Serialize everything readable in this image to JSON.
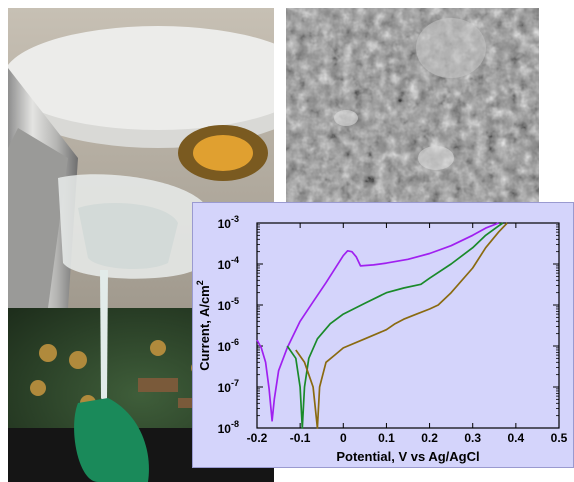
{
  "figure": {
    "left_photo": {
      "subject": "microscope objective above a pipette tip and circuit board"
    },
    "sem_image": {
      "subject": "scanning electron micrograph of a porous surface"
    }
  },
  "chart_data": {
    "type": "line",
    "title": "",
    "xlabel": "Potential, V vs Ag/AgCl",
    "ylabel_main": "Current, A/cm",
    "ylabel_superscript": "2",
    "x_scale": "linear",
    "y_scale": "log",
    "xlim": [
      -0.2,
      0.5
    ],
    "ylim": [
      1e-08,
      0.001
    ],
    "x_ticks": [
      -0.2,
      -0.1,
      0,
      0.1,
      0.2,
      0.3,
      0.4,
      0.5
    ],
    "x_tick_labels": [
      "-0.2",
      "-0.1",
      "0",
      "0.1",
      "0.2",
      "0.3",
      "0.4",
      "0.5"
    ],
    "y_ticks": [
      1e-08,
      1e-07,
      1e-06,
      1e-05,
      0.0001,
      0.001
    ],
    "y_tick_labels": [
      {
        "base": "10",
        "exp": "-8"
      },
      {
        "base": "10",
        "exp": "-7"
      },
      {
        "base": "10",
        "exp": "-6"
      },
      {
        "base": "10",
        "exp": "-5"
      },
      {
        "base": "10",
        "exp": "-4"
      },
      {
        "base": "10",
        "exp": "-3"
      }
    ],
    "grid": false,
    "legend": "none",
    "series": [
      {
        "color": "#a020f0",
        "points": [
          [
            -0.2,
            1.4e-06
          ],
          [
            -0.19,
            9e-07
          ],
          [
            -0.18,
            4e-07
          ],
          [
            -0.172,
            9e-08
          ],
          [
            -0.165,
            1.5e-08
          ],
          [
            -0.16,
            5e-08
          ],
          [
            -0.15,
            2.5e-07
          ],
          [
            -0.13,
            9e-07
          ],
          [
            -0.1,
            4e-06
          ],
          [
            -0.07,
            1.2e-05
          ],
          [
            -0.04,
            3.5e-05
          ],
          [
            -0.02,
            7.5e-05
          ],
          [
            0,
            0.00016
          ],
          [
            0.01,
            0.00021
          ],
          [
            0.02,
            0.0002
          ],
          [
            0.03,
            0.00015
          ],
          [
            0.04,
            9e-05
          ],
          [
            0.07,
            9.5e-05
          ],
          [
            0.1,
            0.000105
          ],
          [
            0.15,
            0.00013
          ],
          [
            0.2,
            0.00018
          ],
          [
            0.25,
            0.00028
          ],
          [
            0.3,
            0.0005
          ],
          [
            0.33,
            0.00075
          ],
          [
            0.36,
            0.001
          ]
        ]
      },
      {
        "color": "#1a8a2a",
        "points": [
          [
            -0.13,
            1e-06
          ],
          [
            -0.11,
            5e-07
          ],
          [
            -0.1,
            1e-07
          ],
          [
            -0.095,
            1e-08
          ],
          [
            -0.09,
            1e-07
          ],
          [
            -0.08,
            5e-07
          ],
          [
            -0.06,
            1.5e-06
          ],
          [
            -0.03,
            3.5e-06
          ],
          [
            0,
            6e-06
          ],
          [
            0.05,
            1.1e-05
          ],
          [
            0.1,
            2e-05
          ],
          [
            0.14,
            2.6e-05
          ],
          [
            0.18,
            3.2e-05
          ],
          [
            0.2,
            4.5e-05
          ],
          [
            0.25,
            0.0001
          ],
          [
            0.3,
            0.00025
          ],
          [
            0.33,
            0.0005
          ],
          [
            0.36,
            0.00085
          ],
          [
            0.37,
            0.001
          ]
        ]
      },
      {
        "color": "#8a6a10",
        "points": [
          [
            -0.11,
            8e-07
          ],
          [
            -0.09,
            4e-07
          ],
          [
            -0.07,
            1e-07
          ],
          [
            -0.06,
            1e-08
          ],
          [
            -0.055,
            1e-07
          ],
          [
            -0.04,
            4e-07
          ],
          [
            -0.02,
            6e-07
          ],
          [
            0,
            9e-07
          ],
          [
            0.05,
            1.5e-06
          ],
          [
            0.1,
            2.5e-06
          ],
          [
            0.12,
            3.5e-06
          ],
          [
            0.14,
            4.5e-06
          ],
          [
            0.17,
            6e-06
          ],
          [
            0.2,
            8e-06
          ],
          [
            0.22,
            1e-05
          ],
          [
            0.25,
            2e-05
          ],
          [
            0.3,
            8e-05
          ],
          [
            0.33,
            0.00025
          ],
          [
            0.36,
            0.0006
          ],
          [
            0.38,
            0.001
          ]
        ]
      }
    ]
  }
}
